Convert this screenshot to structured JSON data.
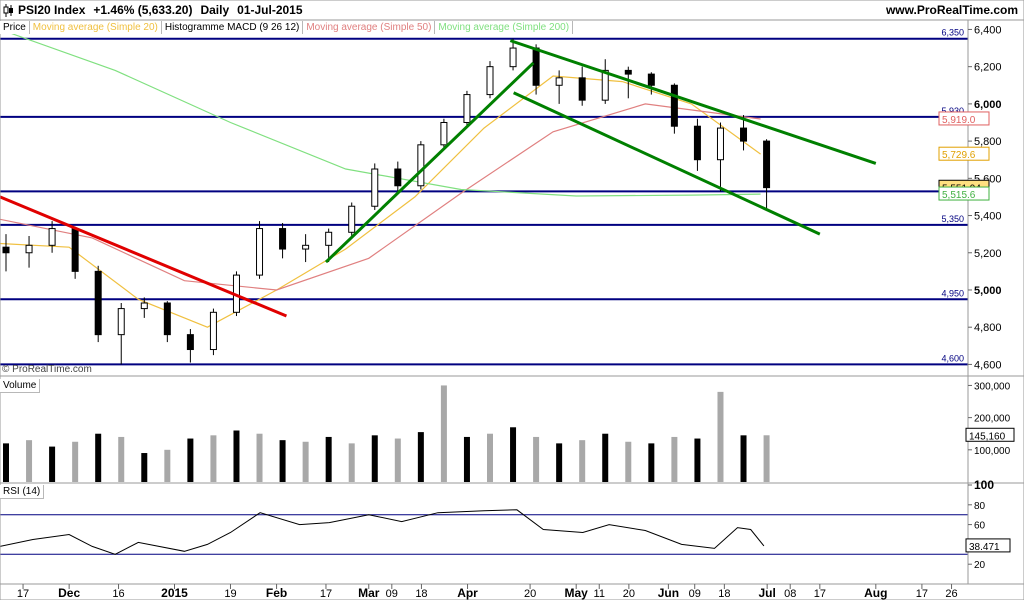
{
  "header": {
    "symbol": "PSI20 Index",
    "change": "+1.46% (5,633.20)",
    "period": "Daily",
    "date": "01-Jul-2015",
    "site": "www.ProRealTime.com"
  },
  "legend": [
    {
      "label": "Price",
      "color": "#000000"
    },
    {
      "label": "Moving average (Simple 20)",
      "color": "#f0c040"
    },
    {
      "label": "Histogramme MACD (9 26 12)",
      "color": "#000000"
    },
    {
      "label": "Moving average (Simple 50)",
      "color": "#e08080"
    },
    {
      "label": "Moving average (Simple 200)",
      "color": "#80e080"
    }
  ],
  "credit": "© ProRealTime.com",
  "panes": {
    "volume_label": "Volume",
    "rsi_label": "RSI (14)"
  },
  "chart_data": [
    {
      "type": "candlestick",
      "title": "PSI20 Index",
      "y_ticks": [
        "4,600",
        "4,800",
        "5,000",
        "5,200",
        "5,400",
        "5,600",
        "5,800",
        "6,000",
        "6,200",
        "6,400"
      ],
      "ylim": [
        4570,
        6440
      ],
      "x_range": [
        "2014-11-10",
        "2015-08-31"
      ],
      "x_ticks": [
        {
          "label": "17",
          "date": "2014-11-17"
        },
        {
          "label": "Dec",
          "date": "2014-12-01",
          "bold": true
        },
        {
          "label": "16",
          "date": "2014-12-16"
        },
        {
          "label": "2015",
          "date": "2015-01-02",
          "bold": true
        },
        {
          "label": "19",
          "date": "2015-01-19"
        },
        {
          "label": "Feb",
          "date": "2015-02-02",
          "bold": true
        },
        {
          "label": "17",
          "date": "2015-02-17"
        },
        {
          "label": "Mar",
          "date": "2015-03-02",
          "bold": true
        },
        {
          "label": "09",
          "date": "2015-03-09"
        },
        {
          "label": "18",
          "date": "2015-03-18"
        },
        {
          "label": "Apr",
          "date": "2015-04-01",
          "bold": true
        },
        {
          "label": "20",
          "date": "2015-04-20"
        },
        {
          "label": "May",
          "date": "2015-05-04",
          "bold": true
        },
        {
          "label": "11",
          "date": "2015-05-11"
        },
        {
          "label": "20",
          "date": "2015-05-20"
        },
        {
          "label": "Jun",
          "date": "2015-06-01",
          "bold": true
        },
        {
          "label": "09",
          "date": "2015-06-09"
        },
        {
          "label": "18",
          "date": "2015-06-18"
        },
        {
          "label": "Jul",
          "date": "2015-07-01",
          "bold": true
        },
        {
          "label": "08",
          "date": "2015-07-08"
        },
        {
          "label": "17",
          "date": "2015-07-17"
        },
        {
          "label": "Aug",
          "date": "2015-08-03",
          "bold": true
        },
        {
          "label": "17",
          "date": "2015-08-17"
        },
        {
          "label": "26",
          "date": "2015-08-26"
        }
      ],
      "horizontal_levels": [
        {
          "value": 6350,
          "label": "6,350",
          "color": "#000080"
        },
        {
          "value": 5930,
          "label": "5,930",
          "color": "#000080"
        },
        {
          "value": 5530,
          "label": "5,530",
          "color": "#000080"
        },
        {
          "value": 5350,
          "label": "5,350",
          "color": "#000080"
        },
        {
          "value": 4950,
          "label": "4,950",
          "color": "#000080"
        },
        {
          "value": 4600,
          "label": "4,600",
          "color": "#000080"
        }
      ],
      "value_tags": [
        {
          "value": 5919.0,
          "label": "5,919.0",
          "color": "#e06060",
          "bg": "#ffffff"
        },
        {
          "value": 5729.6,
          "label": "5,729.6",
          "color": "#e0a000",
          "bg": "#ffffff"
        },
        {
          "value": 5551.94,
          "label": "5,551.94",
          "color": "#000000",
          "bg": "#ffe080"
        },
        {
          "value": 5515.6,
          "label": "5,515.6",
          "color": "#40b040",
          "bg": "#ffffff"
        }
      ],
      "trendlines": [
        {
          "color": "#e00000",
          "from": [
            "2014-11-10",
            5500
          ],
          "to": [
            "2015-02-05",
            4860
          ]
        },
        {
          "color": "#008000",
          "from": [
            "2015-02-17",
            5150
          ],
          "to": [
            "2015-04-21",
            6220
          ]
        },
        {
          "color": "#008000",
          "from": [
            "2015-04-14",
            6340
          ],
          "to": [
            "2015-08-03",
            5680
          ]
        },
        {
          "color": "#008000",
          "from": [
            "2015-04-15",
            6060
          ],
          "to": [
            "2015-07-17",
            5300
          ]
        }
      ],
      "series": [
        {
          "name": "Price",
          "ohlc_weekly": [
            {
              "date": "2014-11-10",
              "open": 5230,
              "high": 5300,
              "low": 5100,
              "close": 5200
            },
            {
              "date": "2014-11-17",
              "open": 5200,
              "high": 5290,
              "low": 5120,
              "close": 5240
            },
            {
              "date": "2014-11-24",
              "open": 5240,
              "high": 5370,
              "low": 5200,
              "close": 5330
            },
            {
              "date": "2014-12-01",
              "open": 5330,
              "high": 5340,
              "low": 5060,
              "close": 5100
            },
            {
              "date": "2014-12-08",
              "open": 5100,
              "high": 5130,
              "low": 4720,
              "close": 4760
            },
            {
              "date": "2014-12-15",
              "open": 4760,
              "high": 4930,
              "low": 4600,
              "close": 4900
            },
            {
              "date": "2014-12-22",
              "open": 4900,
              "high": 4960,
              "low": 4850,
              "close": 4930
            },
            {
              "date": "2014-12-29",
              "open": 4930,
              "high": 4940,
              "low": 4720,
              "close": 4760
            },
            {
              "date": "2015-01-05",
              "open": 4760,
              "high": 4790,
              "low": 4610,
              "close": 4680
            },
            {
              "date": "2015-01-12",
              "open": 4680,
              "high": 4900,
              "low": 4650,
              "close": 4880
            },
            {
              "date": "2015-01-19",
              "open": 4880,
              "high": 5100,
              "low": 4860,
              "close": 5080
            },
            {
              "date": "2015-01-26",
              "open": 5080,
              "high": 5370,
              "low": 5060,
              "close": 5330
            },
            {
              "date": "2015-02-02",
              "open": 5330,
              "high": 5360,
              "low": 5170,
              "close": 5220
            },
            {
              "date": "2015-02-09",
              "open": 5220,
              "high": 5300,
              "low": 5150,
              "close": 5240
            },
            {
              "date": "2015-02-16",
              "open": 5240,
              "high": 5330,
              "low": 5150,
              "close": 5310
            },
            {
              "date": "2015-02-23",
              "open": 5310,
              "high": 5470,
              "low": 5290,
              "close": 5450
            },
            {
              "date": "2015-03-02",
              "open": 5450,
              "high": 5680,
              "low": 5430,
              "close": 5650
            },
            {
              "date": "2015-03-09",
              "open": 5650,
              "high": 5690,
              "low": 5530,
              "close": 5560
            },
            {
              "date": "2015-03-16",
              "open": 5560,
              "high": 5800,
              "low": 5540,
              "close": 5780
            },
            {
              "date": "2015-03-23",
              "open": 5780,
              "high": 5920,
              "low": 5760,
              "close": 5900
            },
            {
              "date": "2015-03-30",
              "open": 5900,
              "high": 6070,
              "low": 5880,
              "close": 6050
            },
            {
              "date": "2015-04-06",
              "open": 6050,
              "high": 6230,
              "low": 6030,
              "close": 6200
            },
            {
              "date": "2015-04-13",
              "open": 6200,
              "high": 6350,
              "low": 6180,
              "close": 6300
            },
            {
              "date": "2015-04-20",
              "open": 6300,
              "high": 6320,
              "low": 6050,
              "close": 6100
            },
            {
              "date": "2015-04-27",
              "open": 6100,
              "high": 6180,
              "low": 6000,
              "close": 6140
            },
            {
              "date": "2015-05-04",
              "open": 6140,
              "high": 6200,
              "low": 5990,
              "close": 6020
            },
            {
              "date": "2015-05-11",
              "open": 6020,
              "high": 6240,
              "low": 6000,
              "close": 6180
            },
            {
              "date": "2015-05-18",
              "open": 6180,
              "high": 6200,
              "low": 6030,
              "close": 6160
            },
            {
              "date": "2015-05-25",
              "open": 6160,
              "high": 6170,
              "low": 6050,
              "close": 6100
            },
            {
              "date": "2015-06-01",
              "open": 6100,
              "high": 6110,
              "low": 5840,
              "close": 5880
            },
            {
              "date": "2015-06-08",
              "open": 5880,
              "high": 5920,
              "low": 5640,
              "close": 5700
            },
            {
              "date": "2015-06-15",
              "open": 5700,
              "high": 5900,
              "low": 5530,
              "close": 5870
            },
            {
              "date": "2015-06-22",
              "open": 5870,
              "high": 5940,
              "low": 5750,
              "close": 5800
            },
            {
              "date": "2015-06-29",
              "open": 5800,
              "high": 5810,
              "low": 5430,
              "close": 5550
            }
          ]
        },
        {
          "name": "Moving average (Simple 20)",
          "color": "#f0c040",
          "points": [
            [
              "2014-11-10",
              5250
            ],
            [
              "2014-12-01",
              5230
            ],
            [
              "2014-12-22",
              4950
            ],
            [
              "2015-01-12",
              4800
            ],
            [
              "2015-02-02",
              5000
            ],
            [
              "2015-02-23",
              5220
            ],
            [
              "2015-03-16",
              5500
            ],
            [
              "2015-04-06",
              5870
            ],
            [
              "2015-04-27",
              6150
            ],
            [
              "2015-05-18",
              6120
            ],
            [
              "2015-06-08",
              6000
            ],
            [
              "2015-06-29",
              5730
            ]
          ]
        },
        {
          "name": "Moving average (Simple 50)",
          "color": "#e08080",
          "points": [
            [
              "2014-11-10",
              5380
            ],
            [
              "2014-12-08",
              5280
            ],
            [
              "2015-01-05",
              5050
            ],
            [
              "2015-02-02",
              5000
            ],
            [
              "2015-03-02",
              5170
            ],
            [
              "2015-03-30",
              5520
            ],
            [
              "2015-04-27",
              5850
            ],
            [
              "2015-05-25",
              6000
            ],
            [
              "2015-06-29",
              5919
            ]
          ]
        },
        {
          "name": "Moving average (Simple 200)",
          "color": "#80e080",
          "points": [
            [
              "2014-11-10",
              6400
            ],
            [
              "2014-12-15",
              6180
            ],
            [
              "2015-01-19",
              5900
            ],
            [
              "2015-02-23",
              5650
            ],
            [
              "2015-03-30",
              5540
            ],
            [
              "2015-05-04",
              5505
            ],
            [
              "2015-06-08",
              5510
            ],
            [
              "2015-06-29",
              5515
            ]
          ]
        }
      ]
    },
    {
      "type": "bar",
      "title": "Volume",
      "y_ticks": [
        "100,000",
        "200,000",
        "300,000"
      ],
      "ylim": [
        0,
        320000
      ],
      "value_tag": "145,160",
      "last_value": 145160,
      "x_range": [
        "2014-11-10",
        "2015-08-31"
      ],
      "weekly_values": [
        {
          "date": "2014-11-10",
          "value": 120000
        },
        {
          "date": "2014-11-17",
          "value": 130000
        },
        {
          "date": "2014-11-24",
          "value": 110000
        },
        {
          "date": "2014-12-01",
          "value": 125000
        },
        {
          "date": "2014-12-08",
          "value": 150000
        },
        {
          "date": "2014-12-15",
          "value": 140000
        },
        {
          "date": "2014-12-22",
          "value": 90000
        },
        {
          "date": "2014-12-29",
          "value": 100000
        },
        {
          "date": "2015-01-05",
          "value": 135000
        },
        {
          "date": "2015-01-12",
          "value": 145000
        },
        {
          "date": "2015-01-19",
          "value": 160000
        },
        {
          "date": "2015-01-26",
          "value": 150000
        },
        {
          "date": "2015-02-02",
          "value": 130000
        },
        {
          "date": "2015-02-09",
          "value": 125000
        },
        {
          "date": "2015-02-16",
          "value": 140000
        },
        {
          "date": "2015-02-23",
          "value": 120000
        },
        {
          "date": "2015-03-02",
          "value": 145000
        },
        {
          "date": "2015-03-09",
          "value": 135000
        },
        {
          "date": "2015-03-16",
          "value": 155000
        },
        {
          "date": "2015-03-23",
          "value": 300000
        },
        {
          "date": "2015-03-30",
          "value": 140000
        },
        {
          "date": "2015-04-06",
          "value": 150000
        },
        {
          "date": "2015-04-13",
          "value": 170000
        },
        {
          "date": "2015-04-20",
          "value": 140000
        },
        {
          "date": "2015-04-27",
          "value": 120000
        },
        {
          "date": "2015-05-04",
          "value": 130000
        },
        {
          "date": "2015-05-11",
          "value": 150000
        },
        {
          "date": "2015-05-18",
          "value": 125000
        },
        {
          "date": "2015-05-25",
          "value": 120000
        },
        {
          "date": "2015-06-01",
          "value": 140000
        },
        {
          "date": "2015-06-08",
          "value": 135000
        },
        {
          "date": "2015-06-15",
          "value": 280000
        },
        {
          "date": "2015-06-22",
          "value": 145000
        },
        {
          "date": "2015-06-29",
          "value": 145160
        }
      ]
    },
    {
      "type": "line",
      "title": "RSI (14)",
      "y_ticks": [
        "20",
        "40",
        "60",
        "80",
        "100"
      ],
      "ylim": [
        0,
        100
      ],
      "overbought": 70,
      "oversold": 30,
      "value_tag": "38.471",
      "last_value": 38.471,
      "x_range": [
        "2014-11-10",
        "2015-08-31"
      ],
      "series": [
        {
          "name": "RSI (14)",
          "color": "#000000",
          "points": [
            [
              "2014-11-10",
              38
            ],
            [
              "2014-11-20",
              45
            ],
            [
              "2014-12-01",
              50
            ],
            [
              "2014-12-08",
              38
            ],
            [
              "2014-12-15",
              30
            ],
            [
              "2014-12-22",
              42
            ],
            [
              "2015-01-05",
              33
            ],
            [
              "2015-01-12",
              40
            ],
            [
              "2015-01-19",
              52
            ],
            [
              "2015-01-28",
              72
            ],
            [
              "2015-02-09",
              60
            ],
            [
              "2015-02-18",
              62
            ],
            [
              "2015-03-02",
              70
            ],
            [
              "2015-03-12",
              63
            ],
            [
              "2015-03-23",
              72
            ],
            [
              "2015-04-06",
              74
            ],
            [
              "2015-04-16",
              75
            ],
            [
              "2015-04-24",
              55
            ],
            [
              "2015-05-06",
              52
            ],
            [
              "2015-05-14",
              60
            ],
            [
              "2015-05-25",
              54
            ],
            [
              "2015-06-05",
              40
            ],
            [
              "2015-06-15",
              36
            ],
            [
              "2015-06-22",
              57
            ],
            [
              "2015-06-26",
              55
            ],
            [
              "2015-06-30",
              38.471
            ]
          ]
        }
      ]
    }
  ]
}
